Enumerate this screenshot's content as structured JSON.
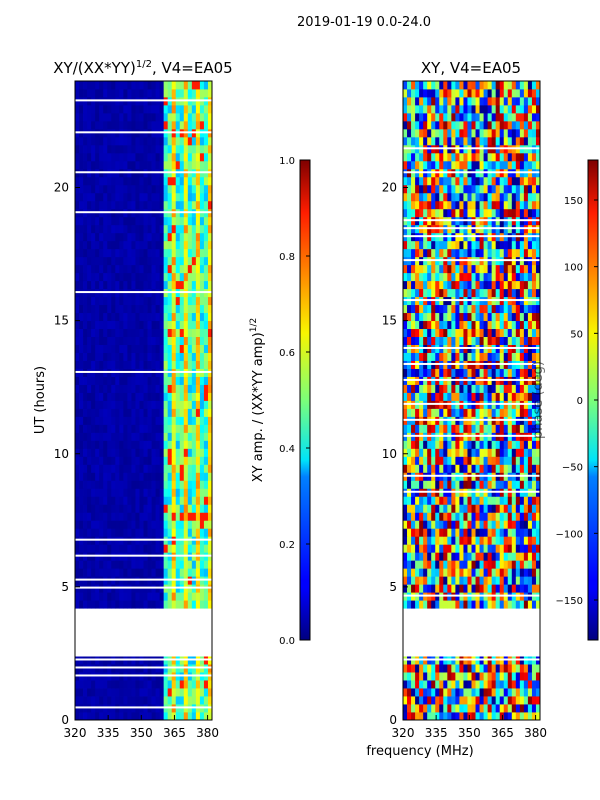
{
  "figure": {
    "suptitle": "2019-01-19 0.0-24.0",
    "xlabel": "frequency (MHz)"
  },
  "chart_data": [
    {
      "type": "heatmap",
      "name": "xy-normalized-amplitude",
      "title": "XY/(XX*YY)",
      "title_superscript": "1/2",
      "title_suffix": ", V4=EA05",
      "xlabel": "",
      "ylabel": "UT (hours)",
      "xlim": [
        320,
        382
      ],
      "ylim": [
        0,
        24
      ],
      "x_ticks": [
        320,
        335,
        350,
        365,
        380
      ],
      "y_ticks": [
        0,
        5,
        10,
        15,
        20
      ],
      "colormap": "jet",
      "data_gaps_hours": [
        [
          2.3,
          4.1
        ]
      ],
      "colorbar": {
        "label": "XY amp. / (XX*YY amp)",
        "label_superscript": "1/2",
        "range": [
          0.0,
          1.0
        ],
        "ticks": [
          0.0,
          0.2,
          0.4,
          0.6,
          0.8,
          1.0
        ],
        "tick_labels": [
          "0.0",
          "0.2",
          "0.4",
          "0.6",
          "0.8",
          "1.0"
        ]
      }
    },
    {
      "type": "heatmap",
      "name": "xy-phase",
      "title": "XY, V4=EA05",
      "xlabel": "frequency (MHz)",
      "ylabel": "",
      "xlim": [
        320,
        382
      ],
      "ylim": [
        0,
        24
      ],
      "x_ticks": [
        320,
        335,
        350,
        365,
        380
      ],
      "y_ticks": [
        0,
        5,
        10,
        15,
        20
      ],
      "colormap": "jet",
      "data_gaps_hours": [
        [
          2.3,
          4.1
        ]
      ],
      "colorbar": {
        "label": "phase (deg)",
        "range": [
          -180,
          180
        ],
        "ticks": [
          -150,
          -100,
          -50,
          0,
          50,
          100,
          150
        ],
        "tick_labels": [
          "−150",
          "−100",
          "−50",
          "0",
          "50",
          "100",
          "150"
        ]
      }
    }
  ],
  "colors": {
    "background": "#ffffff",
    "jet_low": "#00007f",
    "jet_high": "#7f0000"
  }
}
